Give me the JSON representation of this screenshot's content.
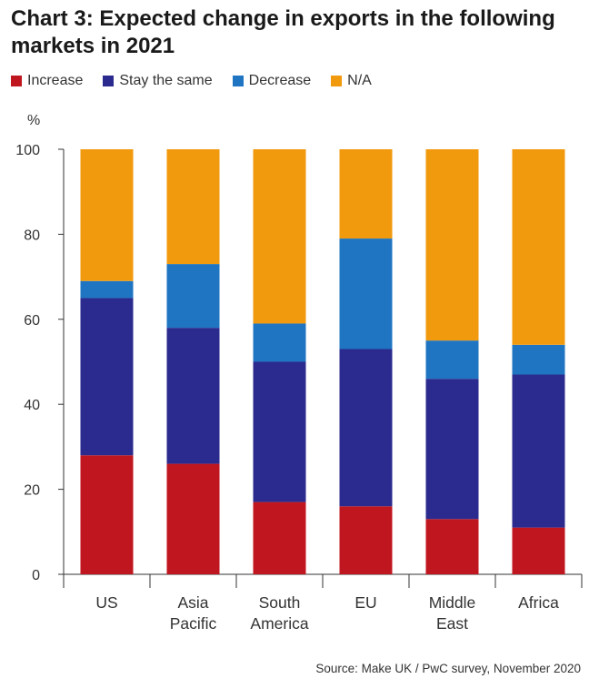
{
  "title": "Chart 3: Expected change in exports in the following markets in 2021",
  "source": "Source: Make UK / PwC survey, November 2020",
  "chart_data": {
    "type": "bar",
    "stacked": true,
    "title": "Chart 3: Expected change in exports in the following markets in 2021",
    "ylabel": "%",
    "ylim": [
      0,
      100
    ],
    "yticks": [
      0,
      20,
      40,
      60,
      80,
      100
    ],
    "grid": false,
    "legend_position": "top-left",
    "categories": [
      [
        "US"
      ],
      [
        "Asia",
        "Pacific"
      ],
      [
        "South",
        "America"
      ],
      [
        "EU"
      ],
      [
        "Middle",
        "East"
      ],
      [
        "Africa"
      ]
    ],
    "series": [
      {
        "name": "Increase",
        "color": "#c0161f",
        "values": [
          28,
          26,
          17,
          16,
          13,
          11
        ]
      },
      {
        "name": "Stay the same",
        "color": "#2b2a8e",
        "values": [
          37,
          32,
          33,
          37,
          33,
          36
        ]
      },
      {
        "name": "Decrease",
        "color": "#1f75c2",
        "values": [
          4,
          15,
          9,
          26,
          9,
          7
        ]
      },
      {
        "name": "N/A",
        "color": "#f29a0d",
        "values": [
          31,
          27,
          41,
          21,
          45,
          46
        ]
      }
    ]
  }
}
